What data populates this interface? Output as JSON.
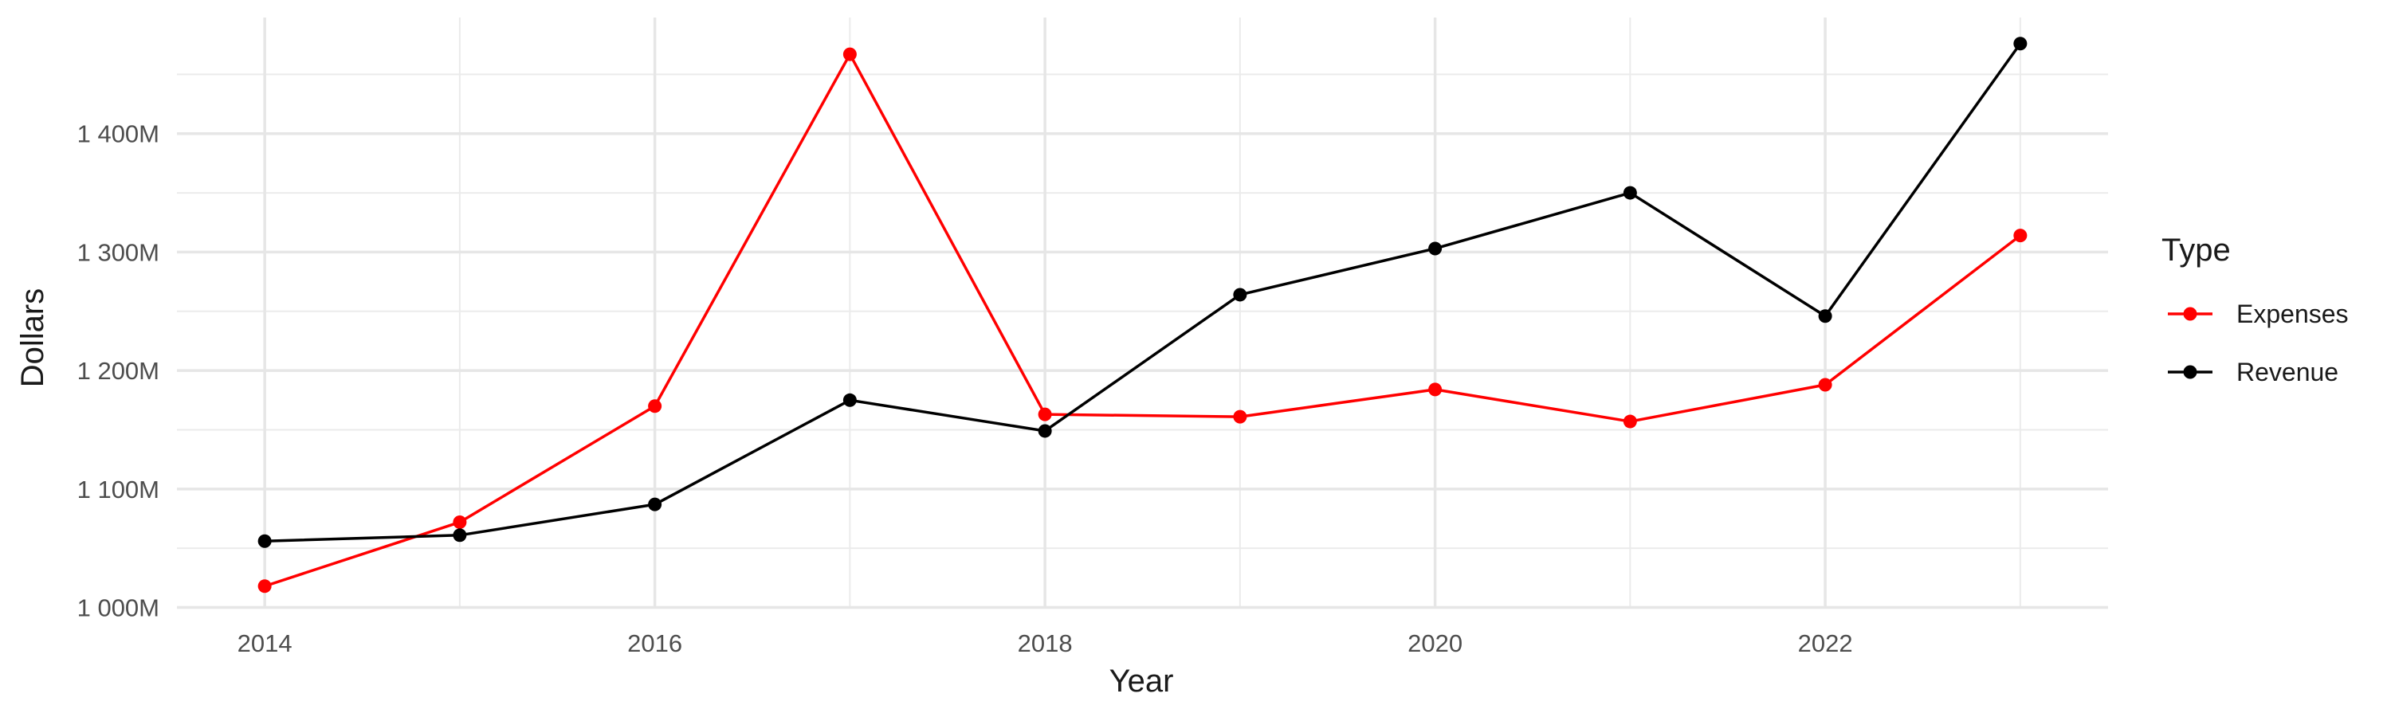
{
  "chart_data": {
    "type": "line",
    "x": [
      2014,
      2015,
      2016,
      2017,
      2018,
      2019,
      2020,
      2021,
      2022,
      2023
    ],
    "series": [
      {
        "name": "Expenses",
        "color": "#ff0000",
        "values": [
          1018,
          1072,
          1170,
          1467,
          1163,
          1161,
          1184,
          1157,
          1188,
          1314
        ]
      },
      {
        "name": "Revenue",
        "color": "#000000",
        "values": [
          1056,
          1061,
          1087,
          1175,
          1149,
          1264,
          1303,
          1350,
          1246,
          1476
        ]
      }
    ],
    "xlabel": "Year",
    "ylabel": "Dollars",
    "xlim": [
      2013.55,
      2023.45
    ],
    "ylim": [
      999,
      1498
    ],
    "x_ticks": [
      2014,
      2016,
      2018,
      2020,
      2022
    ],
    "x_tick_labels": [
      "2014",
      "2016",
      "2018",
      "2020",
      "2022"
    ],
    "x_minor_ticks": [
      2015,
      2017,
      2019,
      2021,
      2023
    ],
    "y_ticks": [
      1000,
      1100,
      1200,
      1300,
      1400
    ],
    "y_tick_labels": [
      "1 000M",
      "1 100M",
      "1 200M",
      "1 300M",
      "1 400M"
    ],
    "y_minor_ticks": [
      1050,
      1150,
      1250,
      1350,
      1450
    ],
    "grid": true,
    "legend": {
      "title": "Type",
      "position": "right"
    }
  }
}
